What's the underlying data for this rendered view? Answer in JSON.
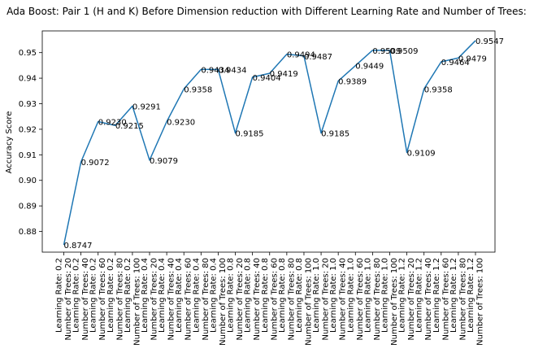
{
  "chart_data": {
    "type": "line",
    "title": "Ada Boost: Pair 1 (H and K) Before Dimension reduction with Different Learning Rate and Number of Trees:",
    "xlabel": "",
    "ylabel": "Accuracy Score",
    "ylim": [
      0.8719,
      0.9585
    ],
    "yticks": [
      "0.88",
      "0.89",
      "0.90",
      "0.91",
      "0.92",
      "0.93",
      "0.94",
      "0.95"
    ],
    "ytick_values": [
      0.88,
      0.89,
      0.9,
      0.91,
      0.92,
      0.93,
      0.94,
      0.95
    ],
    "grid": false,
    "line_color": "#1f77b4",
    "categories": [
      [
        "Learning Rate: 0.2",
        "Number of Trees: 20"
      ],
      [
        "Learning Rate: 0.2",
        "Number of Trees: 40"
      ],
      [
        "Learning Rate: 0.2",
        "Number of Trees: 60"
      ],
      [
        "Learning Rate: 0.2",
        "Number of Trees: 80"
      ],
      [
        "Learning Rate: 0.2",
        "Number of Trees: 100"
      ],
      [
        "Learning Rate: 0.4",
        "Number of Trees: 20"
      ],
      [
        "Learning Rate: 0.4",
        "Number of Trees: 40"
      ],
      [
        "Learning Rate: 0.4",
        "Number of Trees: 60"
      ],
      [
        "Learning Rate: 0.4",
        "Number of Trees: 80"
      ],
      [
        "Learning Rate: 0.4",
        "Number of Trees: 100"
      ],
      [
        "Learning Rate: 0.8",
        "Number of Trees: 20"
      ],
      [
        "Learning Rate: 0.8",
        "Number of Trees: 40"
      ],
      [
        "Learning Rate: 0.8",
        "Number of Trees: 60"
      ],
      [
        "Learning Rate: 0.8",
        "Number of Trees: 80"
      ],
      [
        "Learning Rate: 0.8",
        "Number of Trees: 100"
      ],
      [
        "Learning Rate: 1.0",
        "Number of Trees: 20"
      ],
      [
        "Learning Rate: 1.0",
        "Number of Trees: 40"
      ],
      [
        "Learning Rate: 1.0",
        "Number of Trees: 60"
      ],
      [
        "Learning Rate: 1.0",
        "Number of Trees: 80"
      ],
      [
        "Learning Rate: 1.0",
        "Number of Trees: 100"
      ],
      [
        "Learning Rate: 1.2",
        "Number of Trees: 20"
      ],
      [
        "Learning Rate: 1.2",
        "Number of Trees: 40"
      ],
      [
        "Learning Rate: 1.2",
        "Number of Trees: 60"
      ],
      [
        "Learning Rate: 1.2",
        "Number of Trees: 80"
      ],
      [
        "Learning Rate: 1.2",
        "Number of Trees: 100"
      ]
    ],
    "values": [
      0.8747,
      0.9072,
      0.923,
      0.9215,
      0.9291,
      0.9079,
      0.923,
      0.9358,
      0.9434,
      0.9434,
      0.9185,
      0.9404,
      0.9419,
      0.9494,
      0.9487,
      0.9185,
      0.9389,
      0.9449,
      0.9509,
      0.9509,
      0.9109,
      0.9358,
      0.9464,
      0.9479,
      0.9547
    ],
    "data_labels": [
      "0.8747",
      "0.9072",
      "0.9230",
      "0.9215",
      "0.9291",
      "0.9079",
      "0.9230",
      "0.9358",
      "0.9434",
      "0.9434",
      "0.9185",
      "0.9404",
      "0.9419",
      "0.9494",
      "0.9487",
      "0.9185",
      "0.9389",
      "0.9449",
      "0.9509",
      "0.9509",
      "0.9109",
      "0.9358",
      "0.9464",
      "0.9479",
      "0.9547"
    ]
  }
}
